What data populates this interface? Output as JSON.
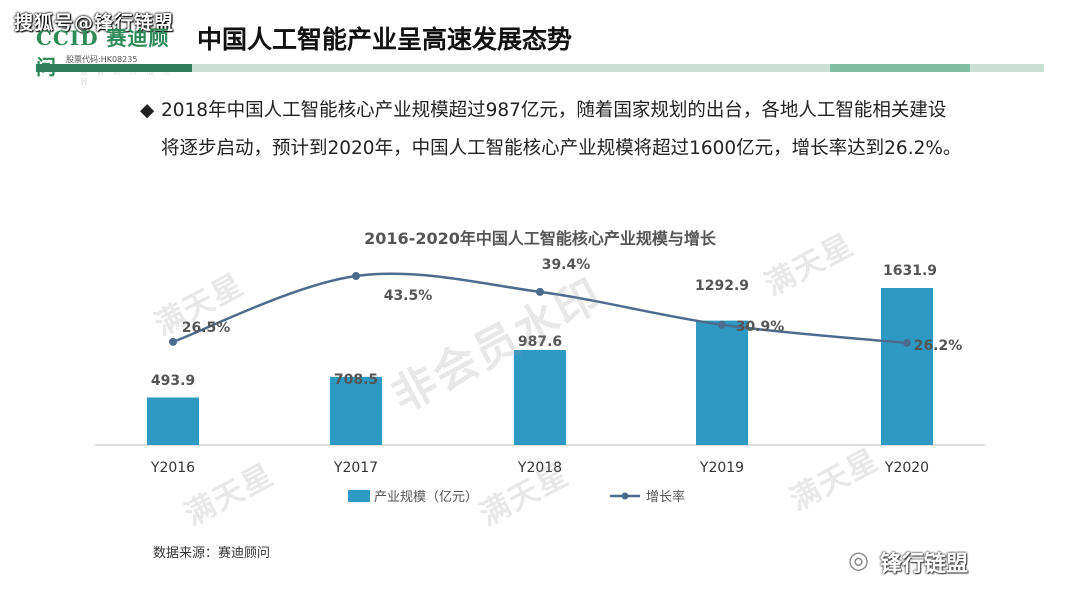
{
  "watermark_top": "搜狐号@锋行链盟",
  "logo": {
    "name": "CCID 赛迪顾问",
    "stock": "股票代码:HK08235",
    "slogan": "让 智 慧 传 播 世 界"
  },
  "page_title": "中国人工智能产业呈高速发展态势",
  "bullet": {
    "mark": "◆",
    "text": "2018年中国人工智能核心产业规模超过987亿元，随着国家规划的出台，各地人工智能相关建设将逐步启动，预计到2020年，中国人工智能核心产业规模将超过1600亿元，增长率达到26.2%。"
  },
  "source": "数据来源：赛迪顾问",
  "footer_brand": "锋行链盟",
  "watermarks": [
    "满天星",
    "满天星",
    "满天星",
    "满天星",
    "满天星",
    "非会员水印"
  ],
  "colors": {
    "bar": "#2e9ac4",
    "line": "#4d6b8f",
    "header": "#2f7d5a"
  },
  "chart_data": {
    "type": "bar",
    "title": "2016-2020年中国人工智能核心产业规模与增长",
    "categories": [
      "Y2016",
      "Y2017",
      "Y2018",
      "Y2019",
      "Y2020"
    ],
    "series": [
      {
        "name": "产业规模（亿元）",
        "type": "bar",
        "values": [
          493.9,
          708.5,
          987.6,
          1292.9,
          1631.9
        ],
        "labels": [
          "493.9",
          "708.5",
          "987.6",
          "1292.9",
          "1631.9"
        ]
      },
      {
        "name": "增长率",
        "type": "line",
        "values": [
          26.5,
          43.5,
          39.4,
          30.9,
          26.2
        ],
        "labels": [
          "26.5%",
          "43.5%",
          "39.4%",
          "30.9%",
          "26.2%"
        ]
      }
    ],
    "legend_position": "bottom",
    "grid": false
  }
}
